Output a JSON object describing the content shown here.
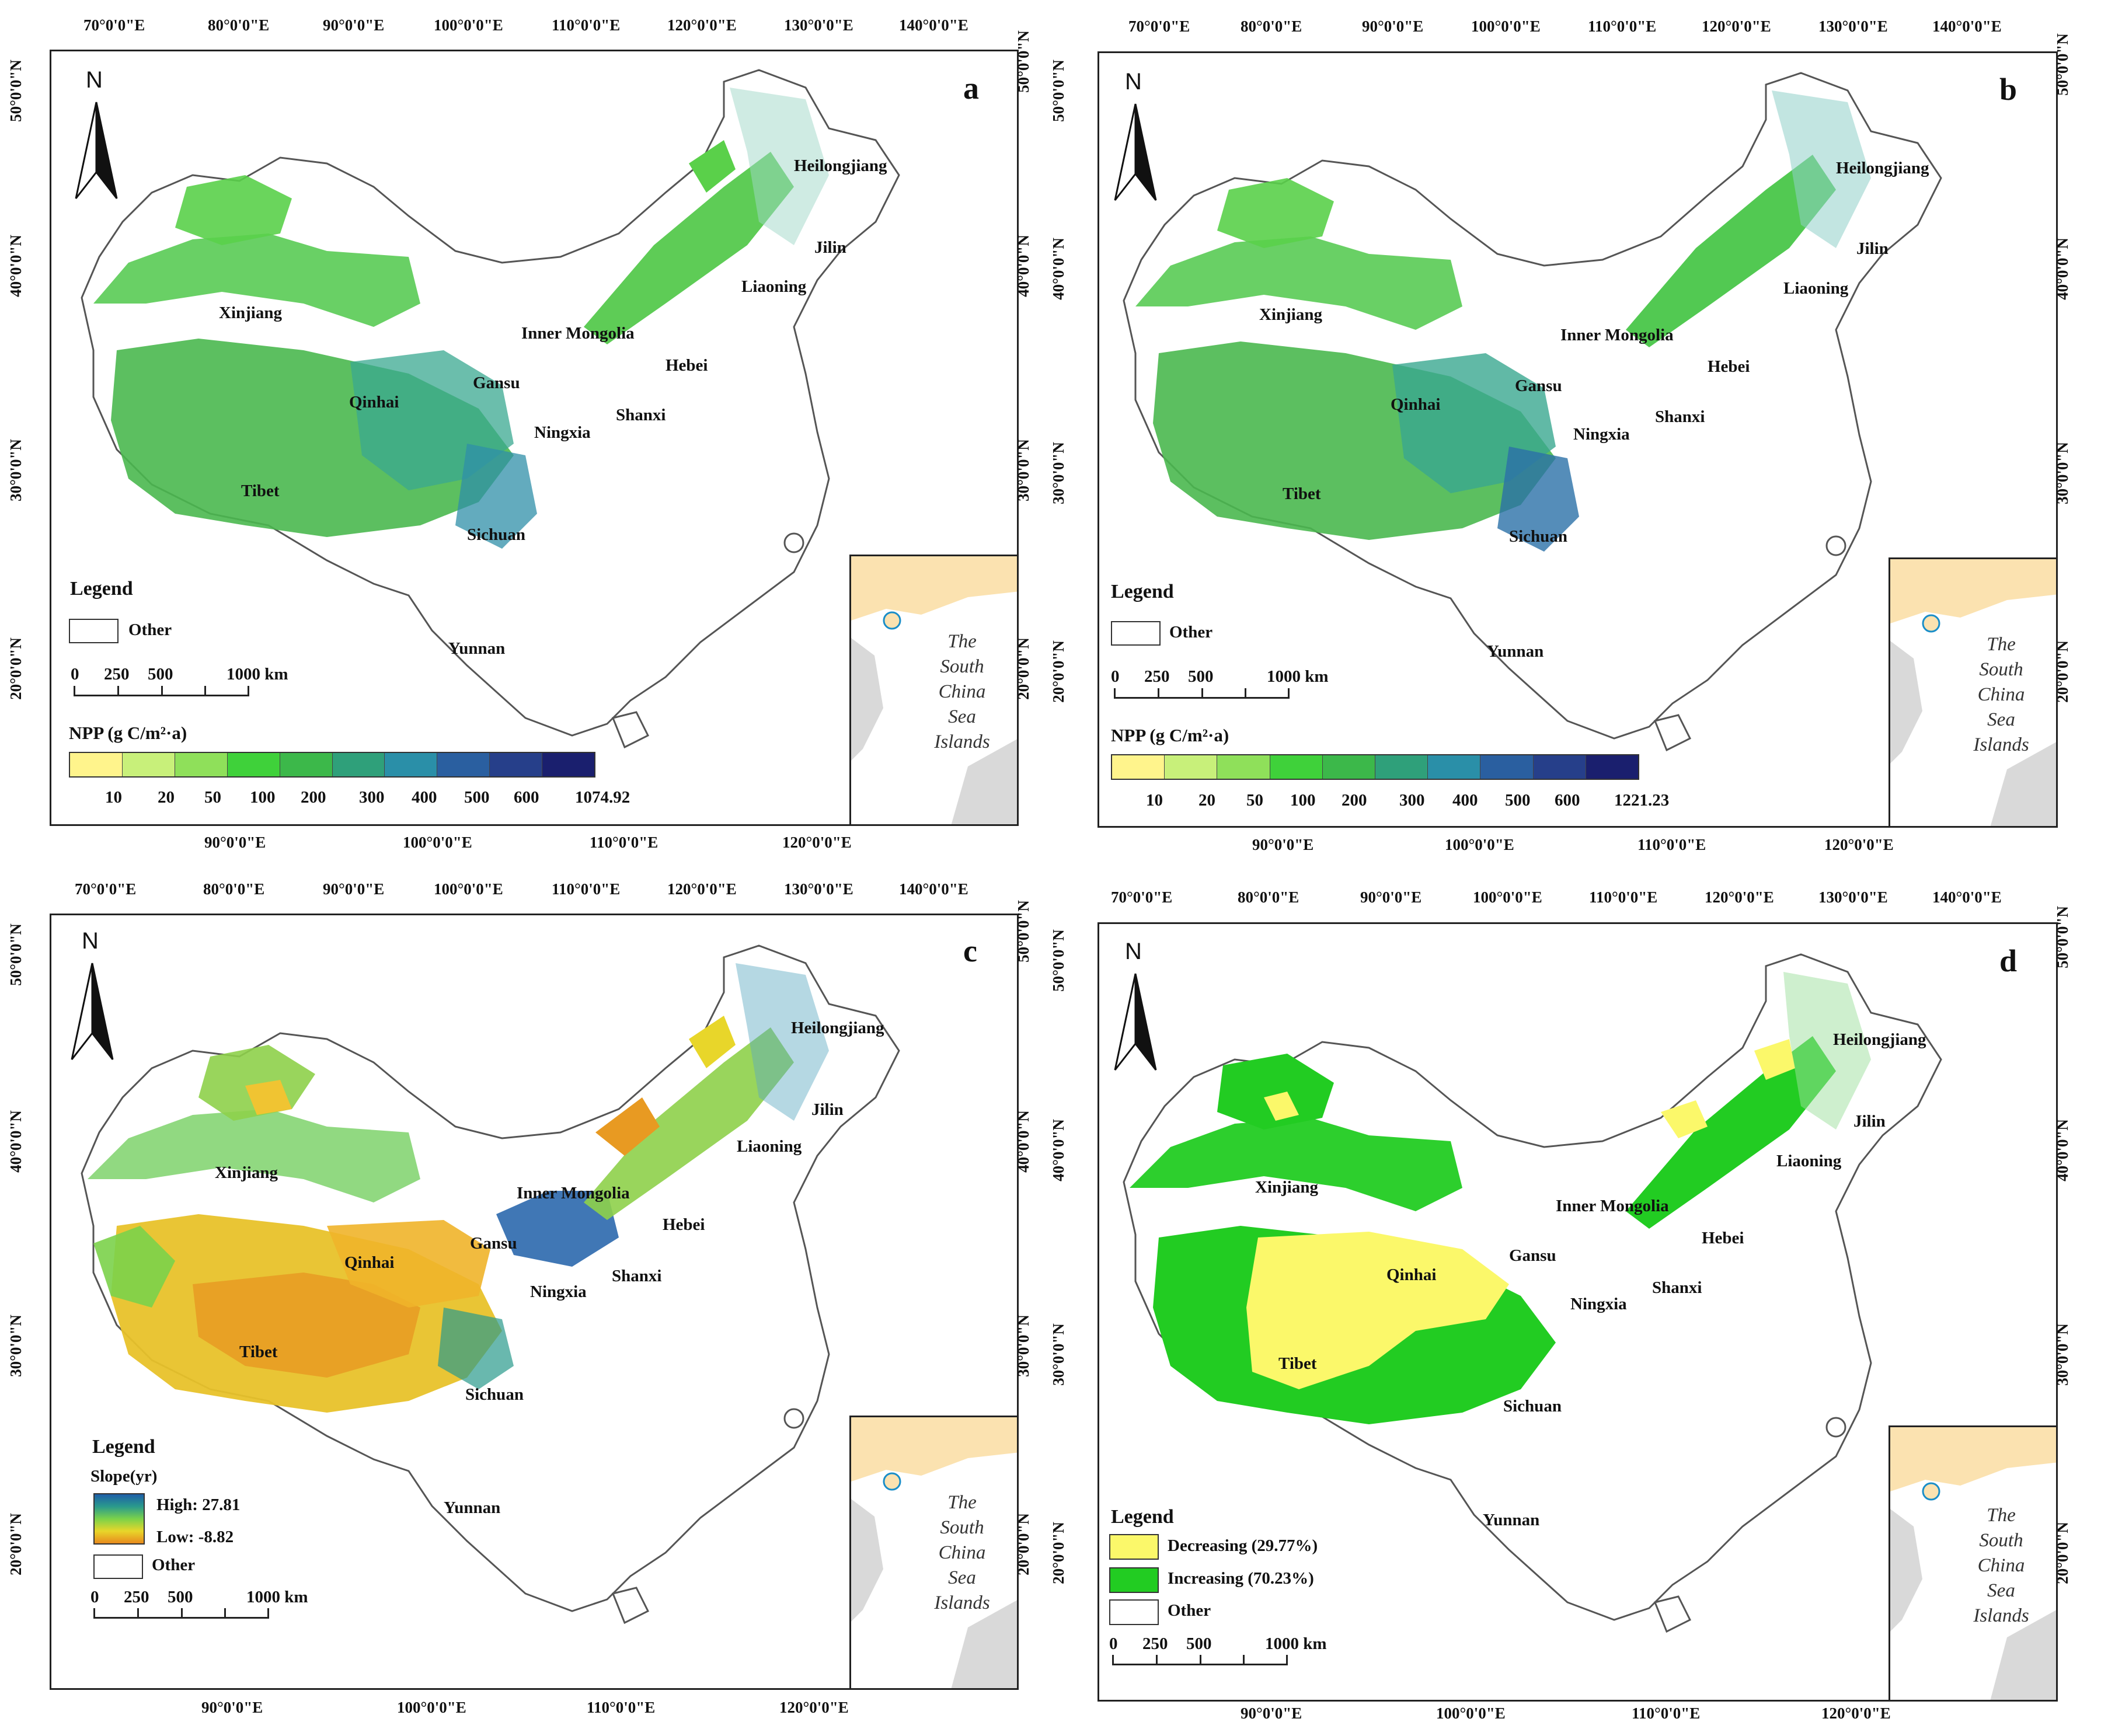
{
  "top_lon_ticks": [
    "70°0'0\"E",
    "80°0'0\"E",
    "90°0'0\"E",
    "100°0'0\"E",
    "110°0'0\"E",
    "120°0'0\"E",
    "130°0'0\"E",
    "140°0'0\"E"
  ],
  "bottom_lon_ticks": [
    "90°0'0\"E",
    "100°0'0\"E",
    "110°0'0\"E",
    "120°0'0\"E"
  ],
  "lat_ticks": [
    "50°0'0\"N",
    "40°0'0\"N",
    "30°0'0\"N",
    "20°0'0\"N"
  ],
  "north_label": "N",
  "provinces": {
    "heilongjiang": "Heilongjiang",
    "jilin": "Jilin",
    "liaoning": "Liaoning",
    "xinjiang": "Xinjiang",
    "inner_mongolia": "Inner Mongolia",
    "hebei": "Hebei",
    "gansu": "Gansu",
    "qinhai": "Qinhai",
    "shanxi": "Shanxi",
    "ningxia": "Ningxia",
    "tibet": "Tibet",
    "sichuan": "Sichuan",
    "yunnan": "Yunnan"
  },
  "inset_lines": [
    "The",
    "South",
    "China",
    "Sea",
    "Islands"
  ],
  "scale": {
    "labels": [
      "0",
      "250",
      "500",
      "1000 km"
    ]
  },
  "panels": {
    "a": {
      "letter": "a",
      "legend_title": "Legend",
      "other_label": "Other",
      "npp_title": "NPP  (g C/m²·a)",
      "ramp_labels": [
        "10",
        "20",
        "50",
        "100",
        "200",
        "300",
        "400",
        "500",
        "600",
        "1074.92"
      ]
    },
    "b": {
      "letter": "b",
      "legend_title": "Legend",
      "other_label": "Other",
      "npp_title": "NPP  (g C/m²·a)",
      "ramp_labels": [
        "10",
        "20",
        "50",
        "100",
        "200",
        "300",
        "400",
        "500",
        "600",
        "1221.23"
      ]
    },
    "c": {
      "letter": "c",
      "legend_title": "Legend",
      "slope_title": "Slope(yr)",
      "high_label": "High: 27.81",
      "low_label": "Low: -8.82",
      "other_label": "Other"
    },
    "d": {
      "letter": "d",
      "legend_title": "Legend",
      "decreasing_label": "Decreasing (29.77%)",
      "increasing_label": "Increasing (70.23%)",
      "other_label": "Other"
    }
  },
  "colors": {
    "npp_ramp": [
      "#fff48c",
      "#c8f07a",
      "#8fe05a",
      "#3fd13a",
      "#3cb84a",
      "#2fa07a",
      "#2a8fa8",
      "#2a5fa0",
      "#263f8a",
      "#1a1f6e"
    ],
    "decreasing": "#fbf86a",
    "increasing": "#22cc22"
  }
}
